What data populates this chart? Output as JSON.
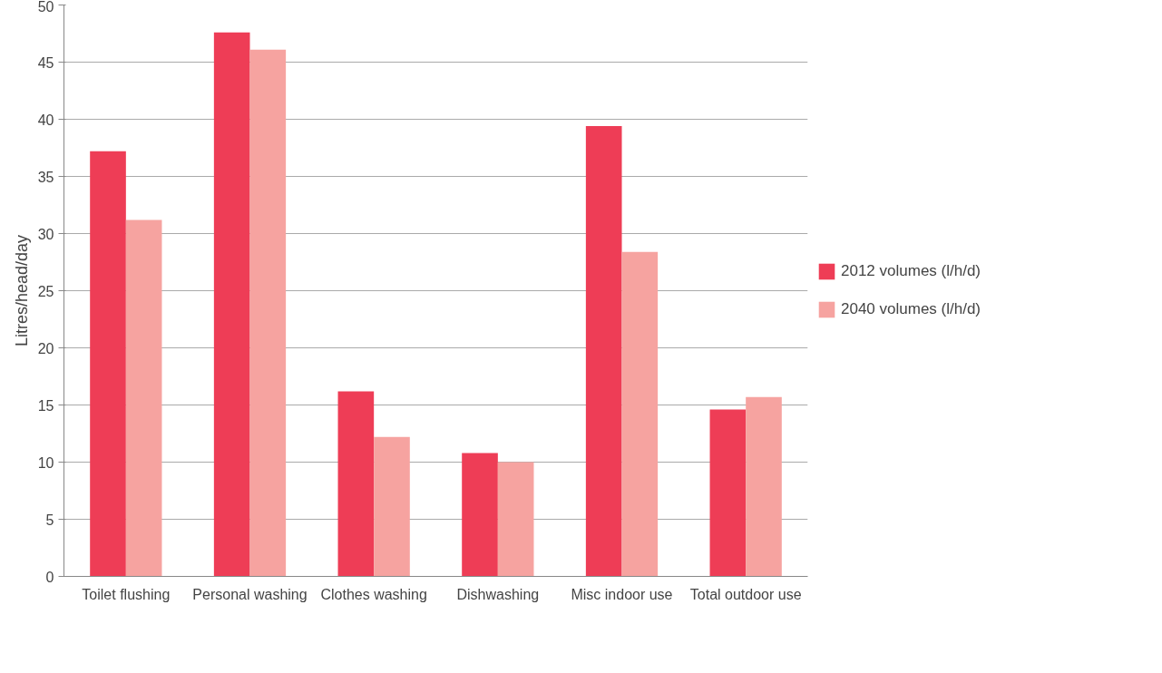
{
  "chart_data": {
    "type": "bar",
    "ylabel": "Litres/head/day",
    "categories": [
      "Toilet flushing",
      "Personal washing",
      "Clothes washing",
      "Dishwashing",
      "Misc indoor use",
      "Total outdoor use"
    ],
    "series": [
      {
        "name": "2012 volumes (l/h/d)",
        "color": "#ee3d56",
        "values": [
          37.2,
          47.6,
          16.2,
          10.8,
          39.4,
          14.6
        ]
      },
      {
        "name": "2040 volumes (l/h/d)",
        "color": "#f6a3a0",
        "values": [
          31.2,
          46.1,
          12.2,
          10.0,
          28.4,
          15.7
        ]
      }
    ],
    "ylim": [
      0,
      50
    ],
    "yticks": [
      0,
      5,
      10,
      15,
      20,
      25,
      30,
      35,
      40,
      45,
      50
    ],
    "grid": "y",
    "legend": "right"
  }
}
